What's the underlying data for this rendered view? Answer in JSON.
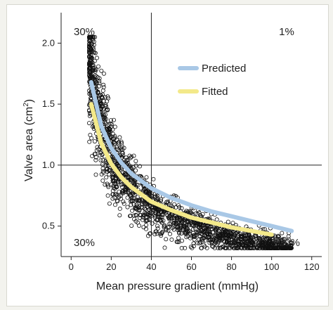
{
  "chart_data": {
    "type": "scatter",
    "title": "",
    "xlabel": "Mean pressure gradient (mmHg)",
    "ylabel": "Valve area (cm²)",
    "ylabel_main": "Valve area (cm",
    "ylabel_sup": "2",
    "ylabel_close": ")",
    "xlim": [
      -5,
      125
    ],
    "ylim": [
      0.25,
      2.25
    ],
    "x_ticks": [
      0,
      20,
      40,
      60,
      80,
      100,
      120
    ],
    "x_tick_labels": [
      "0",
      "20",
      "40",
      "60",
      "80",
      "100",
      "120"
    ],
    "y_ticks": [
      0.5,
      1.0,
      1.5,
      2.0
    ],
    "y_tick_labels": [
      "0.5",
      "1.0",
      "1.5",
      "2.0"
    ],
    "reference_lines": {
      "x": 40,
      "y": 1.0
    },
    "quadrant_labels": {
      "top_left": "30%",
      "top_right": "1%",
      "bottom_left": "30%",
      "bottom_right": "39%"
    },
    "series": [
      {
        "name": "Predicted",
        "color": "#a9c8e6",
        "x": [
          10,
          15,
          20,
          25,
          30,
          40,
          50,
          60,
          70,
          80,
          90,
          100,
          110
        ],
        "y": [
          1.68,
          1.32,
          1.14,
          1.02,
          0.93,
          0.81,
          0.73,
          0.67,
          0.62,
          0.58,
          0.54,
          0.5,
          0.46
        ]
      },
      {
        "name": "Fitted",
        "color": "#f3e98a",
        "x": [
          10,
          15,
          20,
          25,
          30,
          40,
          50,
          60,
          70,
          80,
          90,
          100
        ],
        "y": [
          1.5,
          1.18,
          1.01,
          0.9,
          0.82,
          0.7,
          0.63,
          0.57,
          0.53,
          0.49,
          0.46,
          0.43
        ]
      }
    ],
    "scatter_description_model": {
      "model": "area ≈ 9.5 / gradient^0.72",
      "x_range": [
        9,
        110
      ],
      "n_points": 1900
    },
    "grid": false,
    "legend_placement": "top-center"
  }
}
